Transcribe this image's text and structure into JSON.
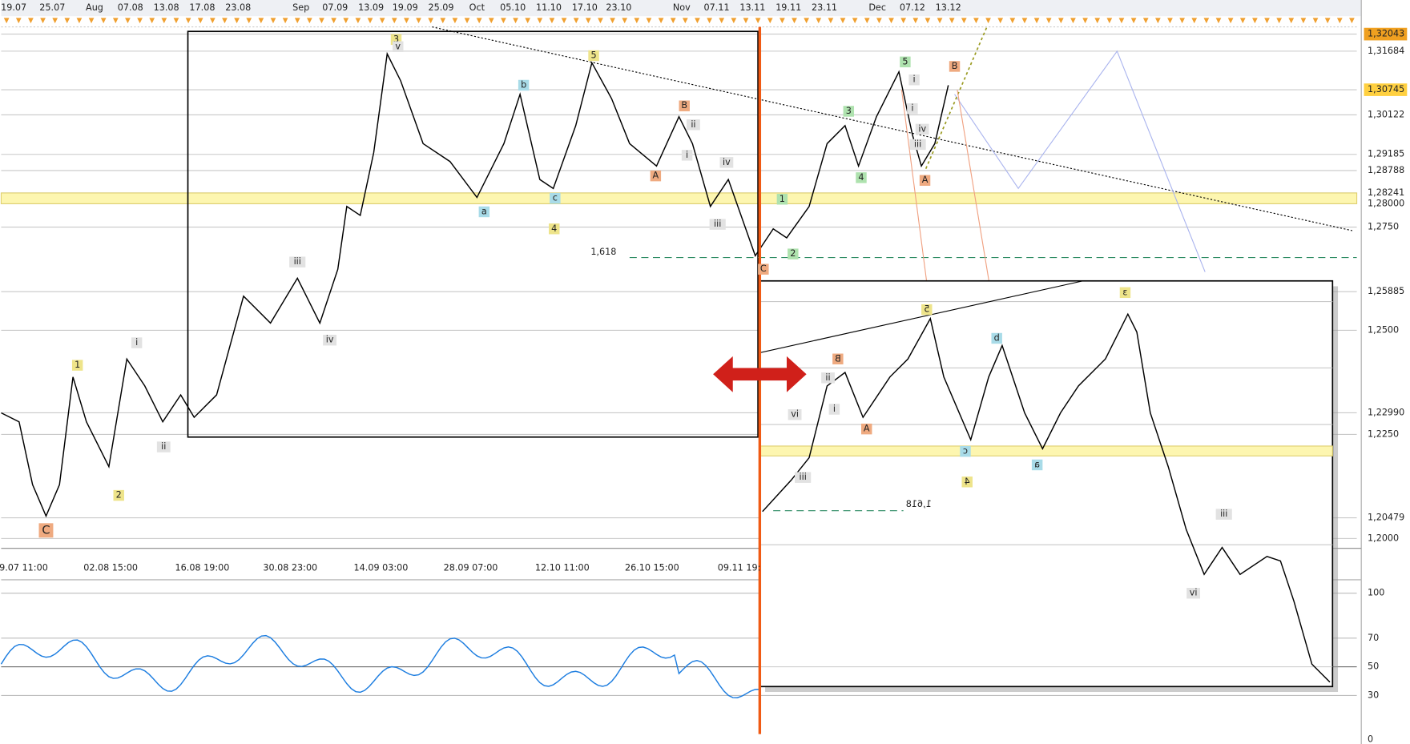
{
  "top_axis": {
    "labels": [
      "19.07",
      "25.07",
      "Aug",
      "07.08",
      "13.08",
      "17.08",
      "23.08",
      "Sep",
      "07.09",
      "13.09",
      "19.09",
      "25.09",
      "Oct",
      "05.10",
      "11.10",
      "17.10",
      "23.10",
      "Nov",
      "07.11",
      "13.11",
      "19.11",
      "23.11",
      "Dec",
      "07.12",
      "13.12"
    ]
  },
  "price_axis": {
    "labels": [
      "1,32043",
      "1,31684",
      "1,30745",
      "1,30122",
      "1,29185",
      "1,28788",
      "1,28241",
      "1,28000",
      "1,2750",
      "1,25885",
      "1,2500",
      "1,22990",
      "1,2250",
      "1,20479",
      "1,2000"
    ]
  },
  "time_axis": {
    "labels": [
      "9.07 11:00",
      "02.08 15:00",
      "16.08 19:00",
      "30.08 23:00",
      "14.09 03:00",
      "28.09 07:00",
      "12.10 11:00",
      "26.10 15:00",
      "09.11 19:"
    ]
  },
  "oscillator_axis": {
    "labels": [
      "100",
      "70",
      "50",
      "30",
      "0"
    ]
  },
  "wave_labels": {
    "main": [
      "3",
      "v",
      "5",
      "b",
      "B",
      "ii",
      "i",
      "A",
      "iv",
      "iii",
      "a",
      "c",
      "4",
      "1,618",
      "C",
      "1",
      "2",
      "3",
      "4",
      "5",
      "B",
      "i",
      "i",
      "iv",
      "iii",
      "A",
      "iii",
      "iv",
      "i",
      "ii",
      "1",
      "2",
      "C"
    ],
    "inset": [
      "ε",
      "5",
      "d",
      "B",
      "ii",
      "i",
      "vi",
      "A",
      "iii",
      "c",
      "a",
      "4",
      "1,618",
      "iii",
      "vi"
    ]
  }
}
